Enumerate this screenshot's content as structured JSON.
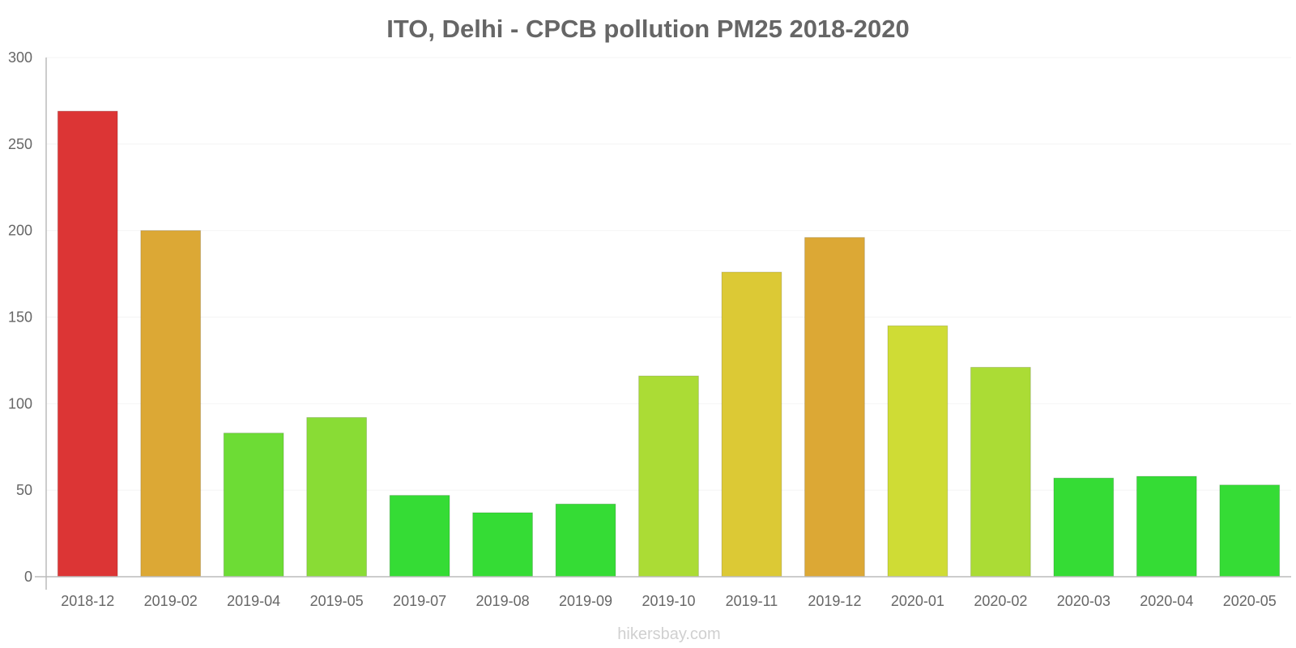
{
  "chart_data": {
    "type": "bar",
    "title": "ITO, Delhi - CPCB pollution PM25 2018-2020",
    "xlabel": "",
    "ylabel": "",
    "ylim": [
      0,
      300
    ],
    "yticks": [
      "0",
      "50",
      "100",
      "150",
      "200",
      "250",
      "300"
    ],
    "categories": [
      "2018-12",
      "2019-02",
      "2019-04",
      "2019-05",
      "2019-07",
      "2019-08",
      "2019-09",
      "2019-10",
      "2019-11",
      "2019-12",
      "2020-01",
      "2020-02",
      "2020-03",
      "2020-04",
      "2020-05"
    ],
    "values": [
      269,
      200,
      83,
      92,
      47,
      37,
      42,
      116,
      176,
      196,
      145,
      121,
      57,
      58,
      53
    ],
    "colors": [
      "#dc3535",
      "#dca835",
      "#6ddc35",
      "#89dc35",
      "#35dc35",
      "#35dc35",
      "#35dc35",
      "#abdc35",
      "#dcc935",
      "#dca835",
      "#cfdc35",
      "#abdc35",
      "#35dc35",
      "#35dc35",
      "#35dc35"
    ],
    "grid": true,
    "legend": "none"
  },
  "watermark": "hikersbay.com"
}
